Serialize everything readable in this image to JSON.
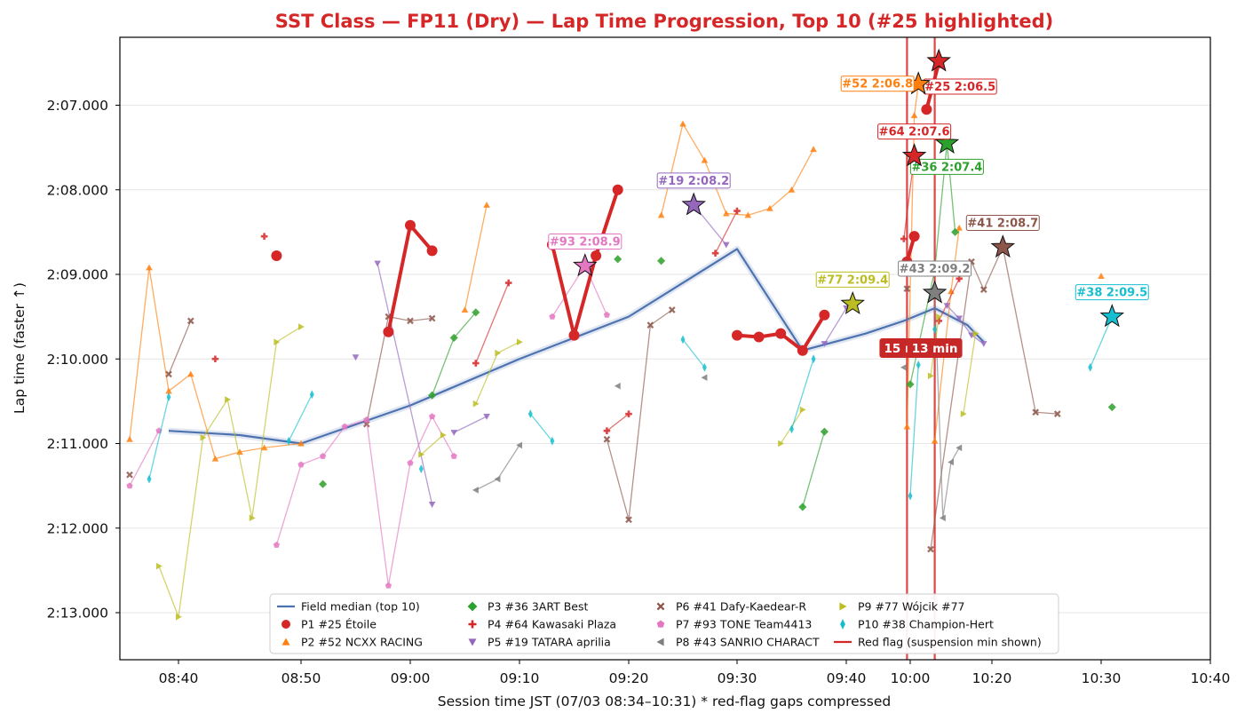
{
  "chart_data": {
    "type": "line",
    "title": "SST Class — FP11 (Dry) — Lap Time Progression, Top 10  (#25 highlighted)",
    "xlabel": "Session time JST (07/03 08:34–10:31)   * red-flag gaps compressed",
    "ylabel": "Lap time (faster ↑)",
    "x_axis_note": "x values are compressed-axis clock labels (HH:MM)",
    "xlim": [
      "08:34",
      "10:40"
    ],
    "ylim_seconds": [
      126.2,
      133.55
    ],
    "y_inverted": true,
    "x_ticks": [
      "08:40",
      "08:50",
      "09:00",
      "09:10",
      "09:20",
      "09:30",
      "09:40",
      "10:00",
      "10:20",
      "10:30",
      "10:40"
    ],
    "y_ticks": [
      "2:07.000",
      "2:08.000",
      "2:09.000",
      "2:10.000",
      "2:11.000",
      "2:12.000",
      "2:13.000"
    ],
    "grid": "horizontal",
    "legend_position": "bottom-center",
    "median_label": "Field median (top 10)",
    "median_color": "#4c72b0",
    "median": {
      "x": [
        "08:39",
        "08:45",
        "08:50",
        "09:00",
        "09:10",
        "09:20",
        "09:30",
        "09:36",
        "09:46",
        "09:58",
        "10:06",
        "10:14",
        "10:18"
      ],
      "y": [
        130.85,
        130.9,
        131.0,
        130.55,
        130.0,
        129.5,
        128.7,
        129.9,
        129.7,
        129.55,
        129.4,
        129.6,
        129.8
      ]
    },
    "series": [
      {
        "name": "P1 #25 Étoile",
        "color": "#d62728",
        "marker": "circle",
        "highlighted": true,
        "segments": [
          {
            "x": [
              "08:48"
            ],
            "y": [
              128.78
            ]
          },
          {
            "x": [
              "08:58",
              "09:00",
              "09:02"
            ],
            "y": [
              129.68,
              128.42,
              128.72
            ]
          },
          {
            "x": [
              "09:13",
              "09:15",
              "09:17",
              "09:19"
            ],
            "y": [
              128.65,
              129.72,
              128.78,
              128.0
            ]
          },
          {
            "x": [
              "09:30",
              "09:32",
              "09:34",
              "09:36",
              "09:38"
            ],
            "y": [
              129.72,
              129.74,
              129.7,
              129.9,
              129.48
            ]
          },
          {
            "x": [
              "09:59",
              "10:01"
            ],
            "y": [
              128.85,
              128.55
            ]
          },
          {
            "x": [
              "10:04",
              "10:07"
            ],
            "y": [
              127.05,
              126.5
            ]
          }
        ]
      },
      {
        "name": "P2 #52 NCXX RACING",
        "color": "#ff7f0e",
        "marker": "triangle-up",
        "segments": [
          {
            "x": [
              "08:35",
              "08:37",
              "08:39",
              "08:41",
              "08:43",
              "08:45",
              "08:47",
              "08:50"
            ],
            "y": [
              130.95,
              128.92,
              130.38,
              130.18,
              131.18,
              131.1,
              131.05,
              131.0
            ]
          },
          {
            "x": [
              "09:05",
              "09:07"
            ],
            "y": [
              129.42,
              128.18
            ]
          },
          {
            "x": [
              "09:23",
              "09:25",
              "09:27",
              "09:29",
              "09:31",
              "09:33",
              "09:35",
              "09:37"
            ],
            "y": [
              128.3,
              127.22,
              127.65,
              128.28,
              128.3,
              128.22,
              128.0,
              127.52
            ]
          },
          {
            "x": [
              "09:59",
              "10:01",
              "10:02"
            ],
            "y": [
              130.8,
              127.12,
              126.75
            ]
          },
          {
            "x": [
              "10:06",
              "10:10",
              "10:12"
            ],
            "y": [
              130.97,
              129.2,
              128.45
            ]
          },
          {
            "x": [
              "10:30"
            ],
            "y": [
              129.02
            ]
          }
        ]
      },
      {
        "name": "P3 #36 3ART Best",
        "color": "#2ca02c",
        "marker": "diamond",
        "segments": [
          {
            "x": [
              "08:52"
            ],
            "y": [
              131.48
            ]
          },
          {
            "x": [
              "09:02",
              "09:04",
              "09:06"
            ],
            "y": [
              130.43,
              129.75,
              129.45
            ]
          },
          {
            "x": [
              "09:19"
            ],
            "y": [
              128.82
            ]
          },
          {
            "x": [
              "09:23"
            ],
            "y": [
              128.84
            ]
          },
          {
            "x": [
              "09:36",
              "09:38"
            ],
            "y": [
              131.75,
              130.86
            ]
          },
          {
            "x": [
              "10:00",
              "10:06",
              "10:09",
              "10:11"
            ],
            "y": [
              130.3,
              128.95,
              127.45,
              128.5
            ]
          },
          {
            "x": [
              "10:31"
            ],
            "y": [
              130.57
            ]
          }
        ]
      },
      {
        "name": "P4 #64 Kawasaki Plaza",
        "color": "#d62728",
        "marker": "plus",
        "segments": [
          {
            "x": [
              "08:43"
            ],
            "y": [
              130.0
            ]
          },
          {
            "x": [
              "08:47"
            ],
            "y": [
              128.55
            ]
          },
          {
            "x": [
              "09:06",
              "09:09"
            ],
            "y": [
              130.05,
              129.1
            ]
          },
          {
            "x": [
              "09:18",
              "09:20"
            ],
            "y": [
              130.85,
              130.65
            ]
          },
          {
            "x": [
              "09:28",
              "09:30"
            ],
            "y": [
              128.75,
              128.25
            ]
          },
          {
            "x": [
              "09:58",
              "10:01"
            ],
            "y": [
              128.58,
              127.6
            ]
          },
          {
            "x": [
              "10:07",
              "10:12"
            ],
            "y": [
              129.55,
              129.05
            ]
          }
        ]
      },
      {
        "name": "P5 #19 TATARA aprilia",
        "color": "#9467bd",
        "marker": "triangle-down",
        "segments": [
          {
            "x": [
              "08:55"
            ],
            "y": [
              129.98
            ]
          },
          {
            "x": [
              "08:57",
              "09:02"
            ],
            "y": [
              128.87,
              131.72
            ]
          },
          {
            "x": [
              "09:04",
              "09:07"
            ],
            "y": [
              130.87,
              130.68
            ]
          },
          {
            "x": [
              "09:26",
              "09:29"
            ],
            "y": [
              128.18,
              128.65
            ]
          },
          {
            "x": [
              "09:38",
              "09:40"
            ],
            "y": [
              129.82,
              129.4
            ]
          },
          {
            "x": [
              "10:09",
              "10:12",
              "10:15",
              "10:18"
            ],
            "y": [
              129.37,
              129.52,
              129.72,
              129.82
            ]
          }
        ]
      },
      {
        "name": "P6 #41 Dafy-Kaedear-R",
        "color": "#8c564b",
        "marker": "x",
        "segments": [
          {
            "x": [
              "08:35"
            ],
            "y": [
              131.37
            ]
          },
          {
            "x": [
              "08:39",
              "08:41"
            ],
            "y": [
              130.18,
              129.55
            ]
          },
          {
            "x": [
              "08:56",
              "08:58",
              "09:00",
              "09:02"
            ],
            "y": [
              130.77,
              129.5,
              129.55,
              129.52
            ]
          },
          {
            "x": [
              "09:18",
              "09:20",
              "09:22",
              "09:24"
            ],
            "y": [
              130.95,
              131.9,
              129.6,
              129.42
            ]
          },
          {
            "x": [
              "09:59"
            ],
            "y": [
              129.17
            ]
          },
          {
            "x": [
              "10:05",
              "10:15",
              "10:18",
              "10:21",
              "10:24",
              "10:26"
            ],
            "y": [
              132.25,
              128.85,
              129.18,
              128.68,
              130.63,
              130.65
            ]
          }
        ]
      },
      {
        "name": "P7 #93 TONE Team4413",
        "color": "#e377c2",
        "marker": "pentagon",
        "segments": [
          {
            "x": [
              "08:35",
              "08:38"
            ],
            "y": [
              131.5,
              130.85
            ]
          },
          {
            "x": [
              "08:48",
              "08:50",
              "08:52",
              "08:54",
              "08:56",
              "08:58",
              "09:00",
              "09:02",
              "09:04"
            ],
            "y": [
              132.2,
              131.25,
              131.15,
              130.8,
              130.72,
              132.68,
              131.23,
              130.68,
              131.15
            ]
          },
          {
            "x": [
              "09:13",
              "09:16",
              "09:18"
            ],
            "y": [
              129.5,
              128.9,
              129.48
            ]
          }
        ]
      },
      {
        "name": "P8 #43 SANRIO CHARACT",
        "color": "#7f7f7f",
        "marker": "triangle-left",
        "segments": [
          {
            "x": [
              "09:06",
              "09:08",
              "09:10"
            ],
            "y": [
              131.55,
              131.42,
              131.02
            ]
          },
          {
            "x": [
              "09:19"
            ],
            "y": [
              130.32
            ]
          },
          {
            "x": [
              "09:27"
            ],
            "y": [
              130.22
            ]
          },
          {
            "x": [
              "09:58"
            ],
            "y": [
              130.1
            ]
          },
          {
            "x": [
              "10:06",
              "10:08",
              "10:10",
              "10:12"
            ],
            "y": [
              129.22,
              131.88,
              131.22,
              131.05
            ]
          }
        ]
      },
      {
        "name": "P9 #77 Wójcik #77",
        "color": "#bcbd22",
        "marker": "triangle-right",
        "segments": [
          {
            "x": [
              "08:38",
              "08:40",
              "08:42",
              "08:44",
              "08:46",
              "08:48",
              "08:50"
            ],
            "y": [
              132.45,
              133.05,
              130.93,
              130.48,
              131.88,
              129.8,
              129.62
            ]
          },
          {
            "x": [
              "09:01",
              "09:03"
            ],
            "y": [
              131.13,
              130.9
            ]
          },
          {
            "x": [
              "09:06",
              "09:08",
              "09:10"
            ],
            "y": [
              130.53,
              129.93,
              129.8
            ]
          },
          {
            "x": [
              "09:34",
              "09:36"
            ],
            "y": [
              131.0,
              130.6
            ]
          },
          {
            "x": [
              "09:42"
            ],
            "y": [
              129.35
            ]
          },
          {
            "x": [
              "10:05",
              "10:07"
            ],
            "y": [
              130.2,
              129.5
            ]
          },
          {
            "x": [
              "10:13",
              "10:16"
            ],
            "y": [
              130.65,
              129.7
            ]
          }
        ]
      },
      {
        "name": "P10 #38 Champion-Hert",
        "color": "#17becf",
        "marker": "thin-diamond",
        "segments": [
          {
            "x": [
              "08:37",
              "08:39"
            ],
            "y": [
              131.42,
              130.45
            ]
          },
          {
            "x": [
              "08:49",
              "08:51"
            ],
            "y": [
              130.97,
              130.42
            ]
          },
          {
            "x": [
              "09:01"
            ],
            "y": [
              131.3
            ]
          },
          {
            "x": [
              "09:11",
              "09:13"
            ],
            "y": [
              130.65,
              130.97
            ]
          },
          {
            "x": [
              "09:25",
              "09:27"
            ],
            "y": [
              129.77,
              130.1
            ]
          },
          {
            "x": [
              "09:35",
              "09:37"
            ],
            "y": [
              130.83,
              130.0
            ]
          },
          {
            "x": [
              "10:00",
              "10:02"
            ],
            "y": [
              131.62,
              130.07
            ]
          },
          {
            "x": [
              "10:06"
            ],
            "y": [
              129.65
            ]
          },
          {
            "x": [
              "10:29",
              "10:31"
            ],
            "y": [
              130.1,
              129.5
            ]
          }
        ]
      }
    ],
    "best_laps": [
      {
        "car": "#25",
        "x": "10:07",
        "y": 126.48,
        "label": "#25 2:06.5",
        "color": "#d62728",
        "label_pos": "below-right"
      },
      {
        "car": "#52",
        "x": "10:02",
        "y": 126.75,
        "label": "#52 2:06.8",
        "color": "#ff7f0e",
        "label_pos": "above-left"
      },
      {
        "car": "#36",
        "x": "10:09",
        "y": 127.45,
        "label": "#36 2:07.4",
        "color": "#2ca02c",
        "label_pos": "below"
      },
      {
        "car": "#64",
        "x": "10:01",
        "y": 127.6,
        "label": "#64 2:07.6",
        "color": "#d62728",
        "label_pos": "above"
      },
      {
        "car": "#19",
        "x": "09:26",
        "y": 128.18,
        "label": "#19 2:08.2",
        "color": "#9467bd",
        "label_pos": "above"
      },
      {
        "car": "#41",
        "x": "10:21",
        "y": 128.68,
        "label": "#41 2:08.7",
        "color": "#8c564b",
        "label_pos": "above"
      },
      {
        "car": "#93",
        "x": "09:16",
        "y": 128.9,
        "label": "#93 2:08.9",
        "color": "#e377c2",
        "label_pos": "above"
      },
      {
        "car": "#43",
        "x": "10:06",
        "y": 129.22,
        "label": "#43 2:09.2",
        "color": "#7f7f7f",
        "label_pos": "above"
      },
      {
        "car": "#77",
        "x": "09:42",
        "y": 129.35,
        "label": "#77 2:09.4",
        "color": "#bcbd22",
        "label_pos": "above"
      },
      {
        "car": "#38",
        "x": "10:31",
        "y": 129.5,
        "label": "#38 2:09.5",
        "color": "#17becf",
        "label_pos": "above"
      }
    ],
    "red_flags": [
      {
        "x": "09:59",
        "label": "15 min"
      },
      {
        "x": "10:06",
        "label": "13 min"
      }
    ],
    "red_flag_legend": "Red flag (suspension min shown)",
    "red_flag_color": "#d62728"
  }
}
